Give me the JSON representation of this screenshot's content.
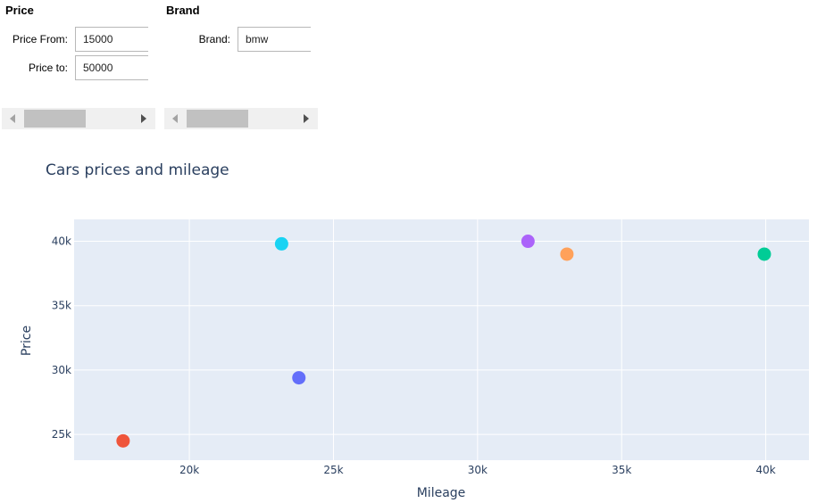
{
  "filters": {
    "price": {
      "title": "Price",
      "from_label": "Price From:",
      "from_value": "15000",
      "to_label": "Price to:",
      "to_value": "50000"
    },
    "brand": {
      "title": "Brand",
      "brand_label": "Brand:",
      "brand_value": "bmw"
    }
  },
  "chart_data": {
    "type": "scatter",
    "title": "Cars prices and mileage",
    "xlabel": "Mileage",
    "ylabel": "Price",
    "xlim": [
      16000,
      41500
    ],
    "ylim": [
      23000,
      41700
    ],
    "xticks": [
      20000,
      25000,
      30000,
      35000,
      40000
    ],
    "xtick_labels": [
      "20k",
      "25k",
      "30k",
      "35k",
      "40k"
    ],
    "yticks": [
      25000,
      30000,
      35000,
      40000
    ],
    "ytick_labels": [
      "25k",
      "30k",
      "35k",
      "40k"
    ],
    "grid": true,
    "background": "#e5ecf6",
    "points": [
      {
        "x": 17700,
        "y": 24500,
        "color": "#ef553b"
      },
      {
        "x": 23200,
        "y": 39800,
        "color": "#19d3f3"
      },
      {
        "x": 23800,
        "y": 29400,
        "color": "#636efa"
      },
      {
        "x": 31750,
        "y": 40000,
        "color": "#ab63fa"
      },
      {
        "x": 33100,
        "y": 39000,
        "color": "#ffa15a"
      },
      {
        "x": 39950,
        "y": 39000,
        "color": "#00cc96"
      }
    ]
  }
}
